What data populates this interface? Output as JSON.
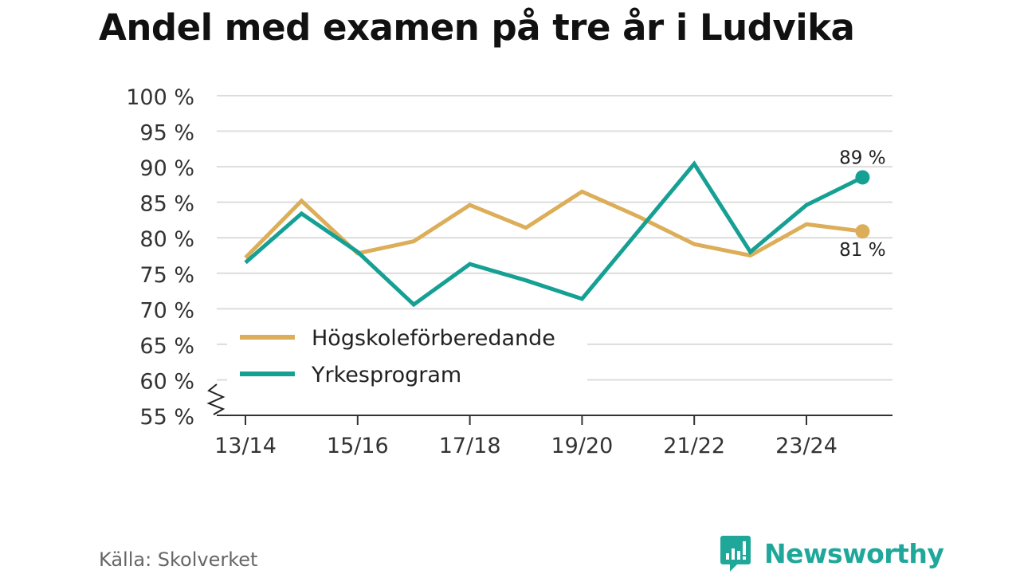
{
  "title": "Andel med examen på tre år i Ludvika",
  "source": "Källa: Skolverket",
  "brand": "Newsworthy",
  "colors": {
    "hogskole": "#dcae5a",
    "yrke": "#16a094",
    "brand": "#1fa89a"
  },
  "chart_data": {
    "type": "line",
    "title": "Andel med examen på tre år i Ludvika",
    "xlabel": "",
    "ylabel": "",
    "x": [
      "13/14",
      "14/15",
      "15/16",
      "16/17",
      "17/18",
      "18/19",
      "19/20",
      "20/21",
      "21/22",
      "22/23",
      "23/24",
      "24/25"
    ],
    "x_tick_labels": [
      "13/14",
      "15/16",
      "17/18",
      "19/20",
      "21/22",
      "23/24"
    ],
    "y_ticks": [
      55,
      60,
      65,
      70,
      75,
      80,
      85,
      90,
      95,
      100
    ],
    "y_tick_labels": [
      "55 %",
      "60 %",
      "65 %",
      "70 %",
      "75 %",
      "80 %",
      "85 %",
      "90 %",
      "95 %",
      "100 %"
    ],
    "ylim": [
      55,
      100
    ],
    "y_axis_break": true,
    "legend_position": "bottom-left",
    "series": [
      {
        "name": "Högskoleförberedande",
        "color": "#dcae5a",
        "values": [
          77.2,
          85.2,
          77.8,
          79.5,
          84.6,
          81.4,
          86.5,
          83.0,
          79.1,
          77.5,
          81.9,
          80.9
        ],
        "end_label": "81 %"
      },
      {
        "name": "Yrkesprogram",
        "color": "#16a094",
        "values": [
          76.5,
          83.4,
          78.0,
          70.6,
          76.3,
          74.0,
          71.4,
          80.9,
          90.4,
          78.0,
          84.6,
          88.5
        ],
        "end_label": "89 %"
      }
    ]
  }
}
